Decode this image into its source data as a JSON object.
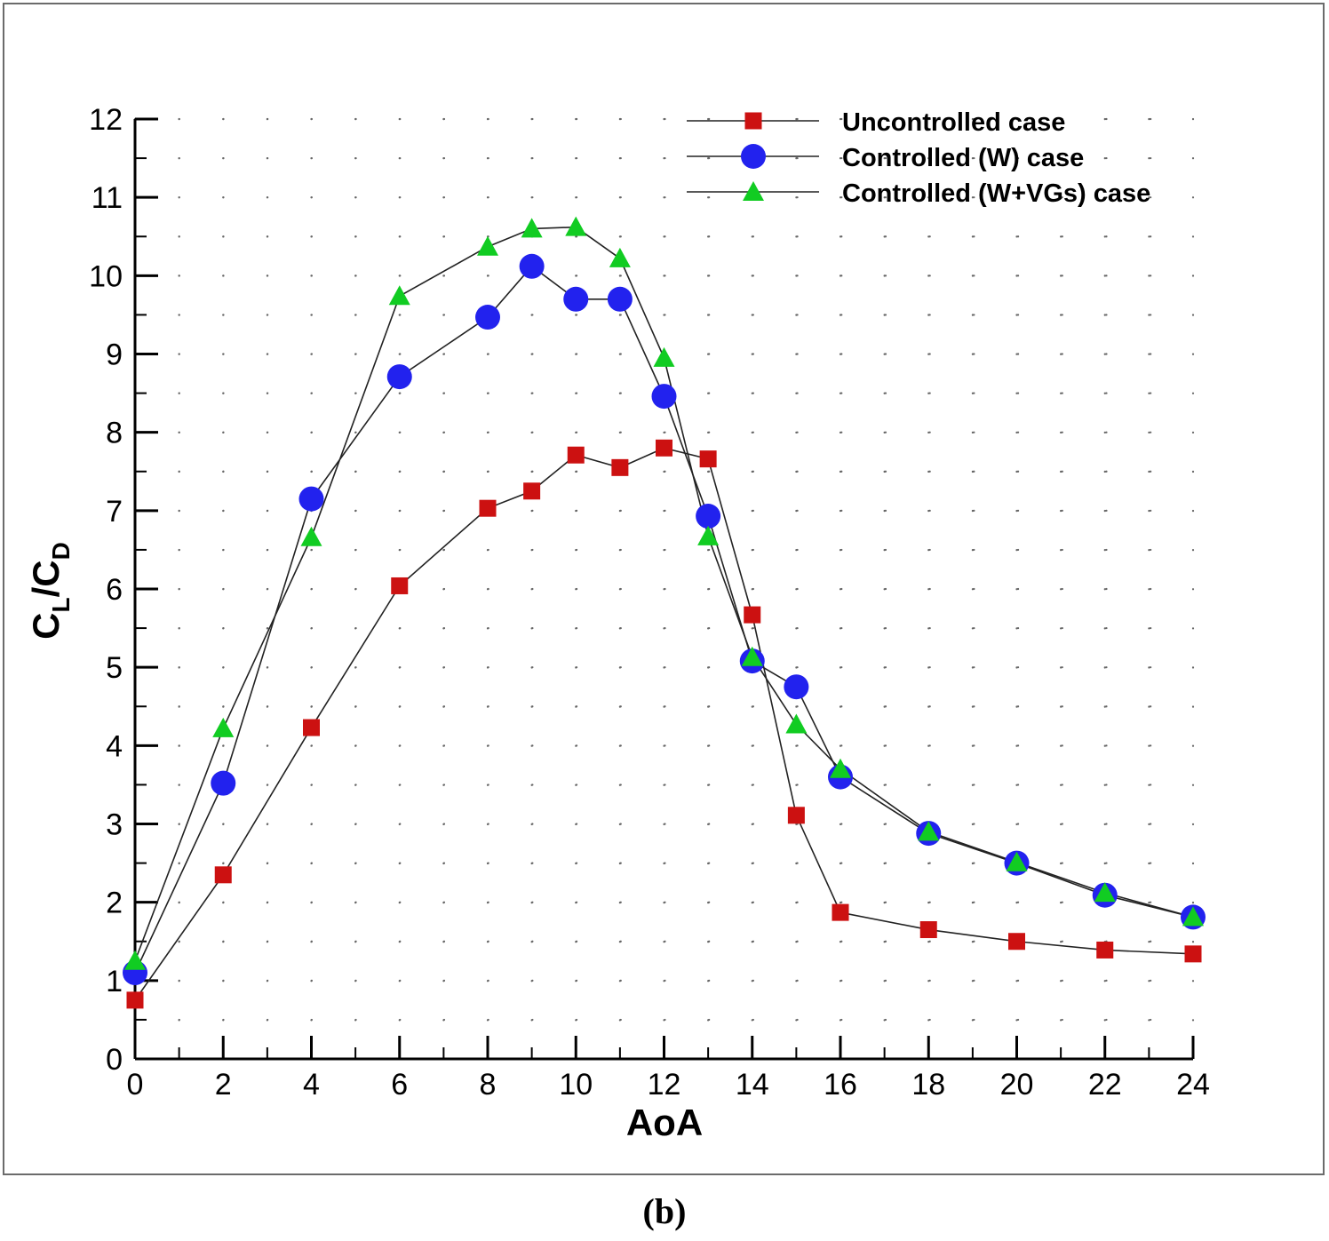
{
  "caption": "(b)",
  "chart_data": {
    "type": "line",
    "title": "",
    "xlabel": "AoA",
    "ylabel_main": "C",
    "ylabel_sub1": "L",
    "ylabel_slash": "/C",
    "ylabel_sub2": "D",
    "xlim": [
      0,
      24
    ],
    "ylim": [
      0,
      12
    ],
    "xticks": [
      0,
      2,
      4,
      6,
      8,
      10,
      12,
      14,
      16,
      18,
      20,
      22,
      24
    ],
    "yticks": [
      0,
      1,
      2,
      3,
      4,
      5,
      6,
      7,
      8,
      9,
      10,
      11,
      12
    ],
    "grid": "dotted",
    "legend_position": "top-right",
    "series": [
      {
        "name": "Uncontrolled case",
        "marker": "square",
        "color": "#cc1111",
        "x": [
          0,
          2,
          4,
          6,
          8,
          9,
          10,
          11,
          12,
          13,
          14,
          15,
          16,
          18,
          20,
          22,
          24
        ],
        "y": [
          0.75,
          2.35,
          4.23,
          6.04,
          7.03,
          7.25,
          7.71,
          7.55,
          7.8,
          7.66,
          5.67,
          3.11,
          1.87,
          1.65,
          1.5,
          1.39,
          1.34
        ]
      },
      {
        "name": "Controlled (W) case",
        "marker": "circle",
        "color": "#2222ee",
        "x": [
          0,
          2,
          4,
          6,
          8,
          9,
          10,
          11,
          12,
          13,
          14,
          15,
          16,
          18,
          20,
          22,
          24
        ],
        "y": [
          1.1,
          3.52,
          7.15,
          8.71,
          9.47,
          10.12,
          9.7,
          9.7,
          8.46,
          6.93,
          5.08,
          4.75,
          3.6,
          2.88,
          2.5,
          2.09,
          1.81
        ]
      },
      {
        "name": "Controlled (W+VGs) case",
        "marker": "triangle",
        "color": "#11cc22",
        "x": [
          0,
          2,
          4,
          6,
          8,
          9,
          10,
          11,
          12,
          13,
          14,
          15,
          16,
          18,
          20,
          22,
          24
        ],
        "y": [
          1.25,
          4.22,
          6.66,
          9.74,
          10.37,
          10.6,
          10.62,
          10.22,
          8.95,
          6.67,
          5.13,
          4.27,
          3.7,
          2.9,
          2.51,
          2.12,
          1.81
        ]
      }
    ]
  }
}
